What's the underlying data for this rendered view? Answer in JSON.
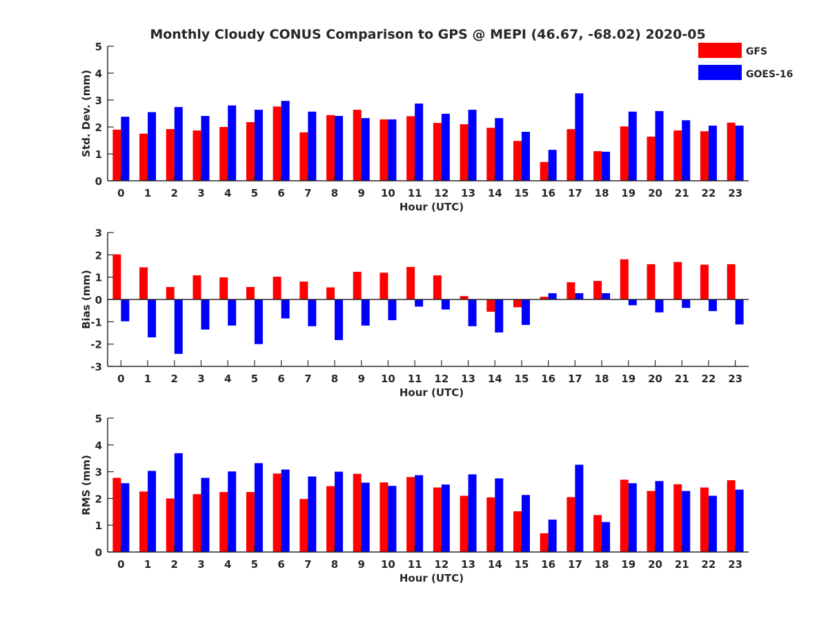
{
  "figure": {
    "title": "Monthly Cloudy CONUS Comparison to GPS @ MEPI (46.67, -68.02) 2020-05"
  },
  "colors": {
    "gfs": "#ff0000",
    "goes": "#0000ff",
    "axis": "#262626"
  },
  "chart_data": [
    {
      "type": "bar",
      "xlabel": "Hour (UTC)",
      "ylabel": "Std. Dev. (mm)",
      "ylim": [
        0,
        5
      ],
      "yticks": [
        0,
        1,
        2,
        3,
        4,
        5
      ],
      "legend": "top-right",
      "categories": [
        "0",
        "1",
        "2",
        "3",
        "4",
        "5",
        "6",
        "7",
        "8",
        "9",
        "10",
        "11",
        "12",
        "13",
        "14",
        "15",
        "16",
        "17",
        "18",
        "19",
        "20",
        "21",
        "22",
        "23"
      ],
      "series": [
        {
          "name": "GFS",
          "values": [
            1.9,
            1.75,
            1.92,
            1.87,
            2.0,
            2.18,
            2.76,
            1.8,
            2.44,
            2.64,
            2.28,
            2.4,
            2.15,
            2.1,
            1.97,
            1.48,
            0.7,
            1.92,
            1.1,
            2.02,
            1.64,
            1.87,
            1.84,
            2.16
          ]
        },
        {
          "name": "GOES-16",
          "values": [
            2.38,
            2.55,
            2.74,
            2.41,
            2.8,
            2.64,
            2.97,
            2.57,
            2.41,
            2.33,
            2.28,
            2.87,
            2.49,
            2.64,
            2.33,
            1.82,
            1.15,
            3.25,
            1.08,
            2.57,
            2.59,
            2.25,
            2.05,
            2.05
          ]
        }
      ]
    },
    {
      "type": "bar",
      "xlabel": "Hour (UTC)",
      "ylabel": "Bias (mm)",
      "ylim": [
        -3,
        3
      ],
      "yticks": [
        -3,
        -2,
        -1,
        0,
        1,
        2,
        3
      ],
      "categories": [
        "0",
        "1",
        "2",
        "3",
        "4",
        "5",
        "6",
        "7",
        "8",
        "9",
        "10",
        "11",
        "12",
        "13",
        "14",
        "15",
        "16",
        "17",
        "18",
        "19",
        "20",
        "21",
        "22",
        "23"
      ],
      "series": [
        {
          "name": "GFS",
          "values": [
            2.02,
            1.44,
            0.56,
            1.08,
            0.99,
            0.56,
            1.02,
            0.8,
            0.54,
            1.24,
            1.2,
            1.46,
            1.08,
            0.15,
            -0.55,
            -0.35,
            0.12,
            0.77,
            0.83,
            1.8,
            1.58,
            1.68,
            1.56,
            1.58
          ]
        },
        {
          "name": "GOES-16",
          "values": [
            -0.98,
            -1.7,
            -2.44,
            -1.35,
            -1.17,
            -2.0,
            -0.85,
            -1.2,
            -1.82,
            -1.17,
            -0.93,
            -0.32,
            -0.45,
            -1.2,
            -1.48,
            -1.14,
            0.28,
            0.28,
            0.28,
            -0.26,
            -0.58,
            -0.38,
            -0.52,
            -1.12
          ]
        }
      ]
    },
    {
      "type": "bar",
      "xlabel": "Hour (UTC)",
      "ylabel": "RMS (mm)",
      "ylim": [
        0,
        5
      ],
      "yticks": [
        0,
        1,
        2,
        3,
        4,
        5
      ],
      "categories": [
        "0",
        "1",
        "2",
        "3",
        "4",
        "5",
        "6",
        "7",
        "8",
        "9",
        "10",
        "11",
        "12",
        "13",
        "14",
        "15",
        "16",
        "17",
        "18",
        "19",
        "20",
        "21",
        "22",
        "23"
      ],
      "series": [
        {
          "name": "GFS",
          "values": [
            2.77,
            2.26,
            2.0,
            2.16,
            2.24,
            2.24,
            2.93,
            1.98,
            2.46,
            2.92,
            2.6,
            2.8,
            2.41,
            2.1,
            2.04,
            1.52,
            0.7,
            2.05,
            1.38,
            2.7,
            2.28,
            2.53,
            2.41,
            2.68
          ]
        },
        {
          "name": "GOES-16",
          "values": [
            2.57,
            3.03,
            3.69,
            2.77,
            3.01,
            3.32,
            3.08,
            2.82,
            3.0,
            2.59,
            2.47,
            2.87,
            2.52,
            2.9,
            2.75,
            2.13,
            1.21,
            3.26,
            1.12,
            2.57,
            2.65,
            2.28,
            2.1,
            2.33
          ]
        }
      ]
    }
  ]
}
